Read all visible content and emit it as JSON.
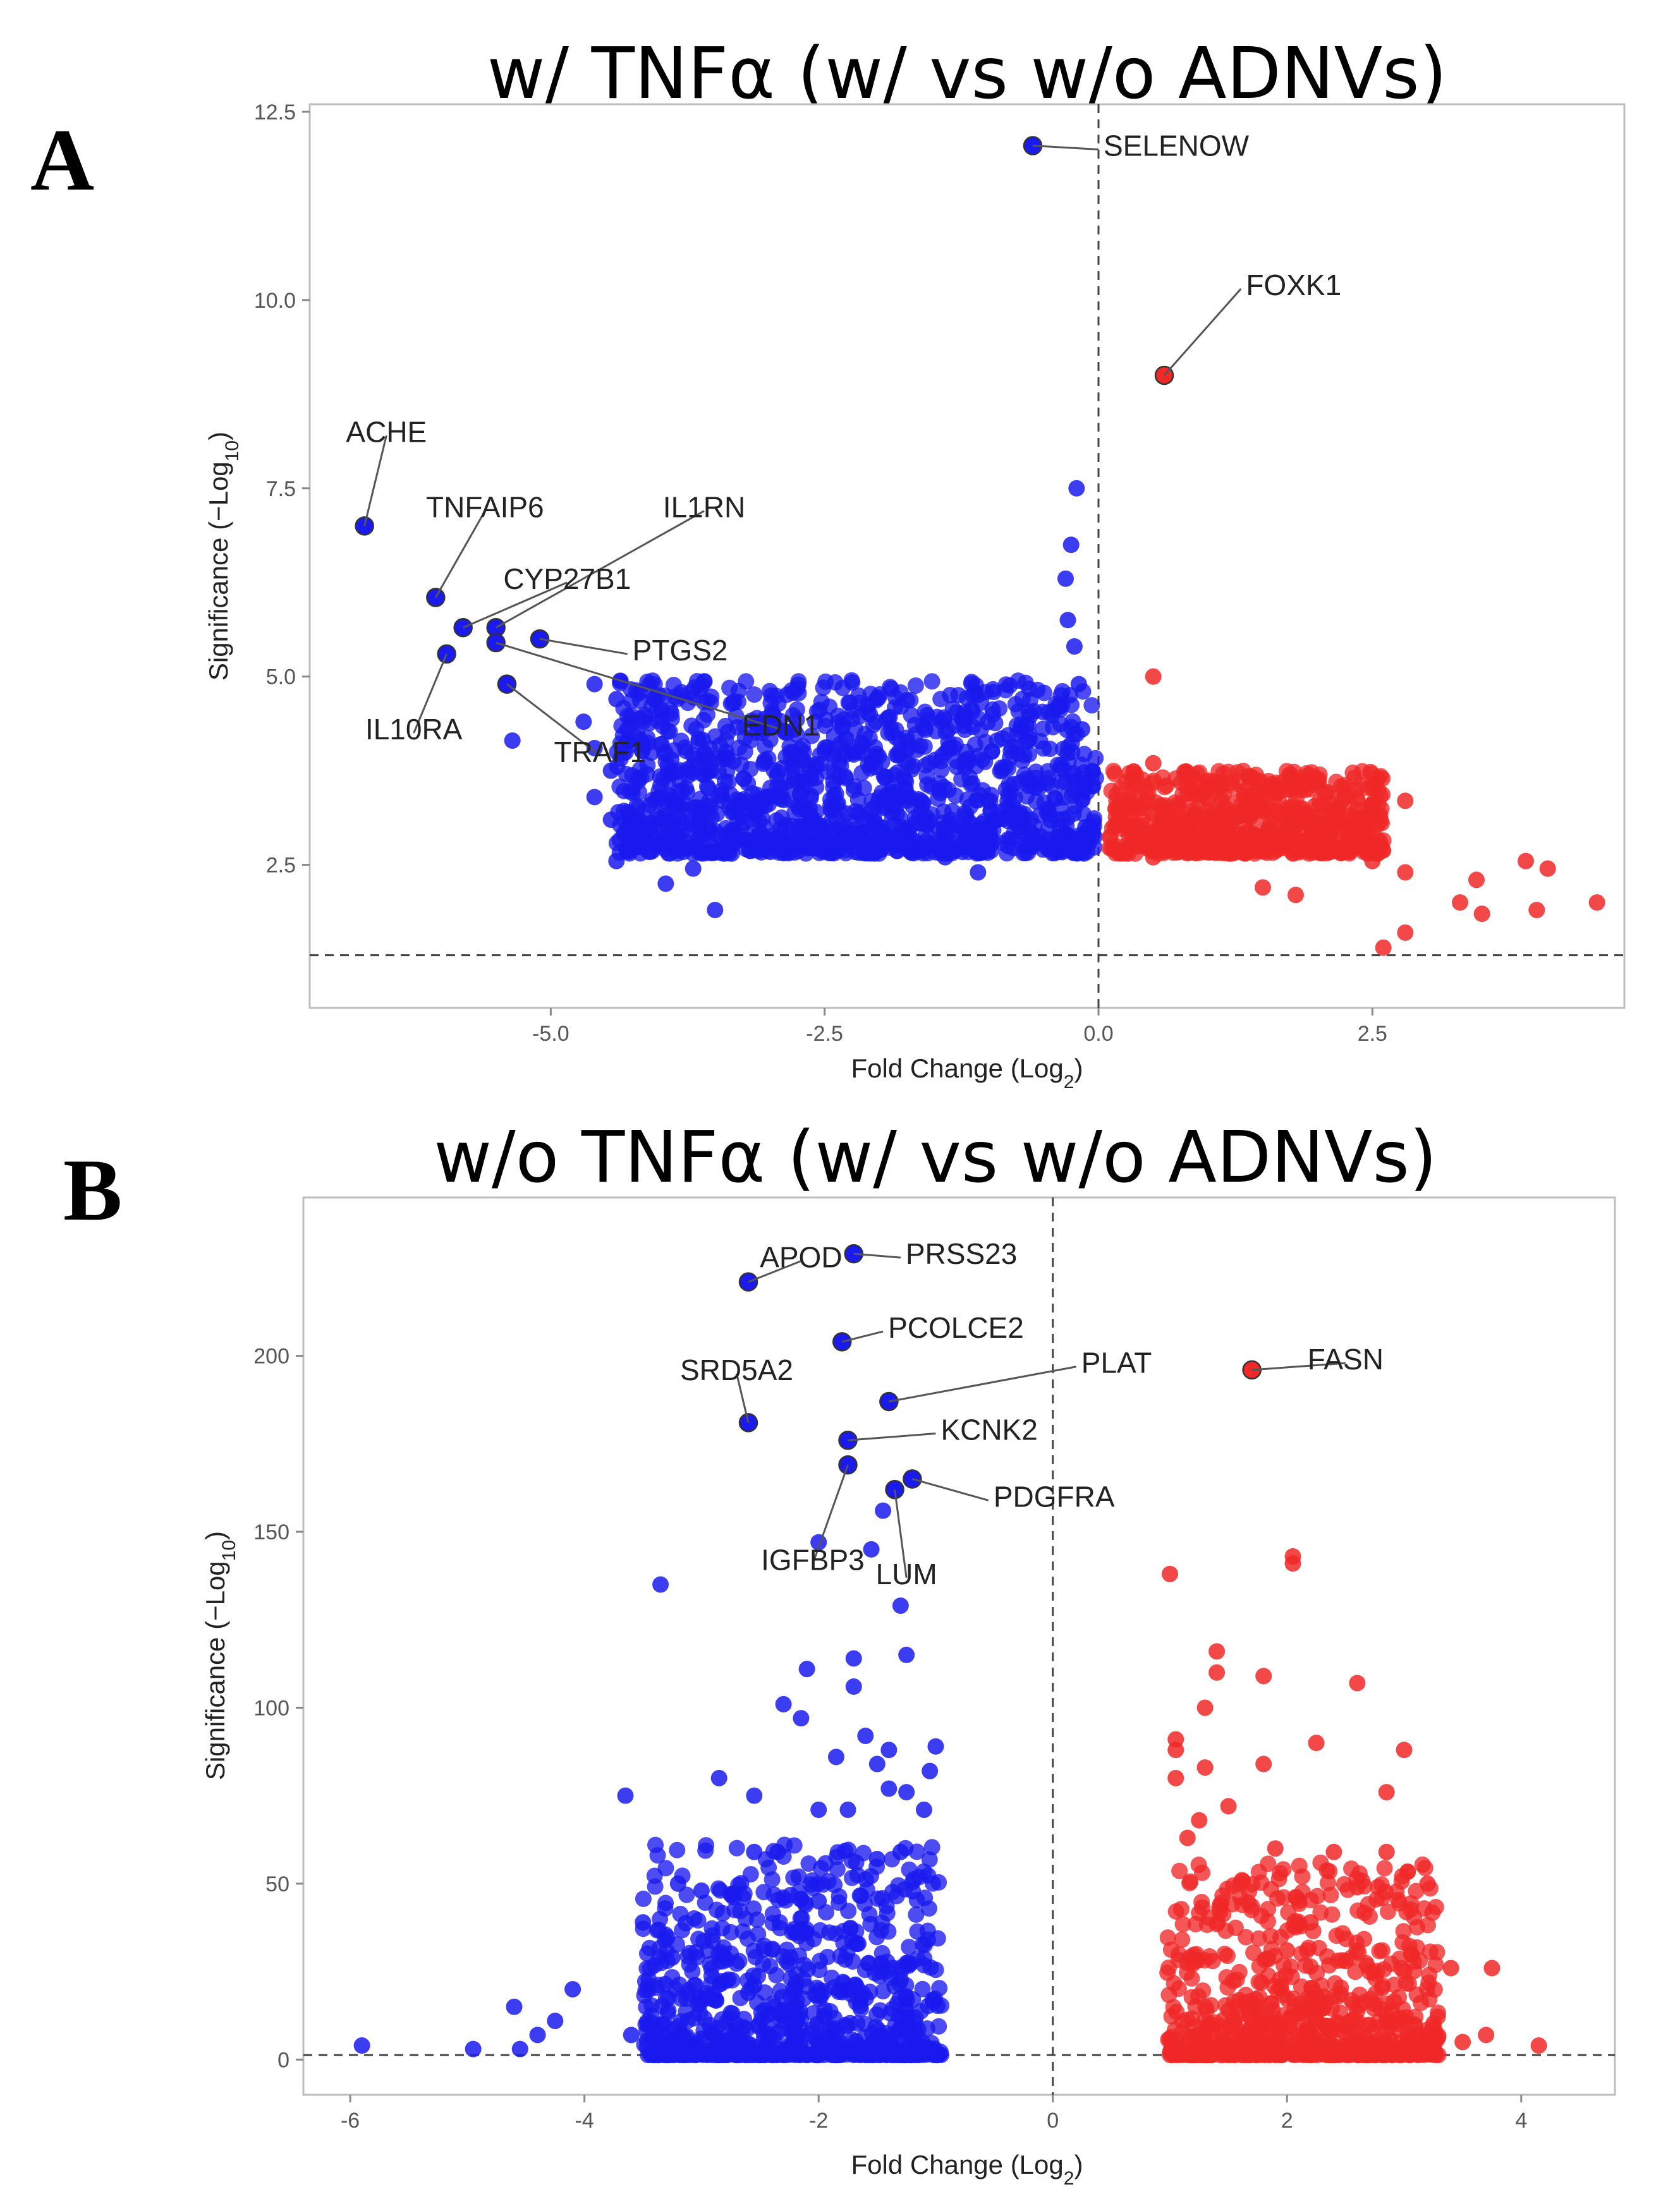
{
  "chart_data": [
    {
      "panel": "A",
      "type": "scatter",
      "title": "w/ TNFα (w/ vs w/o ADNVs)",
      "xlabel": "Fold Change (Log",
      "xlabel_sub": "2",
      "ylabel": "Significance (−Log",
      "ylabel_sub": "10",
      "xlim": [
        -7.2,
        4.8
      ],
      "ylim": [
        0.6,
        12.6
      ],
      "xticks": [
        -5.0,
        -2.5,
        0.0,
        2.5
      ],
      "xtick_labels": [
        "-5.0",
        "-2.5",
        "0.0",
        "2.5"
      ],
      "yticks": [
        2.5,
        5.0,
        7.5,
        10.0,
        12.5
      ],
      "ytick_labels": [
        "2.5",
        "5.0",
        "7.5",
        "10.0",
        "12.5"
      ],
      "vline_x": 0.0,
      "hline_y": 1.3,
      "colors": {
        "down": "#1a1aee",
        "up": "#f02828"
      },
      "down_points": [
        [
          -6.7,
          7.0
        ],
        [
          -6.05,
          6.05
        ],
        [
          -5.8,
          5.65
        ],
        [
          -5.95,
          5.3
        ],
        [
          -5.5,
          5.65
        ],
        [
          -5.5,
          5.45
        ],
        [
          -5.1,
          5.5
        ],
        [
          -5.4,
          4.9
        ],
        [
          -5.35,
          4.15
        ],
        [
          -4.7,
          4.4
        ],
        [
          -4.6,
          4.9
        ],
        [
          -4.4,
          4.7
        ],
        [
          -4.3,
          4.3
        ],
        [
          -4.6,
          4.05
        ],
        [
          -4.45,
          3.75
        ],
        [
          -4.2,
          3.65
        ],
        [
          -4.6,
          3.4
        ],
        [
          -4.45,
          3.1
        ],
        [
          -4.3,
          3.2
        ],
        [
          -4.0,
          3.4
        ],
        [
          -3.9,
          3.9
        ],
        [
          -3.6,
          3.7
        ],
        [
          -3.4,
          4.0
        ],
        [
          -3.1,
          3.3
        ],
        [
          -2.9,
          3.45
        ],
        [
          -2.7,
          3.5
        ],
        [
          -2.6,
          3.1
        ],
        [
          -4.4,
          2.55
        ],
        [
          -4.2,
          2.8
        ],
        [
          -3.95,
          2.25
        ],
        [
          -3.7,
          2.45
        ],
        [
          -3.5,
          1.9
        ],
        [
          -2.0,
          2.9
        ],
        [
          -1.7,
          2.7
        ],
        [
          -1.4,
          2.6
        ],
        [
          -1.1,
          2.4
        ],
        [
          -0.3,
          3.6
        ],
        [
          -0.35,
          4.6
        ],
        [
          -0.28,
          5.75
        ],
        [
          -0.22,
          5.4
        ],
        [
          -0.3,
          6.3
        ],
        [
          -0.25,
          6.75
        ],
        [
          -0.2,
          7.5
        ],
        [
          -0.18,
          4.9
        ],
        [
          -0.15,
          4.3
        ],
        [
          -0.12,
          3.0
        ],
        [
          -0.6,
          12.05
        ]
      ],
      "down_fill": {
        "n": 1300,
        "x_min": -4.4,
        "x_max": -0.02,
        "y_floor": 1.35,
        "y_amp": 2.3,
        "y_power": 1.6,
        "seed": 7
      },
      "up_points": [
        [
          0.6,
          9.0
        ],
        [
          0.5,
          5.0
        ],
        [
          0.5,
          3.85
        ],
        [
          0.4,
          3.1
        ],
        [
          0.25,
          3.6
        ],
        [
          0.3,
          2.9
        ],
        [
          0.5,
          2.6
        ],
        [
          1.0,
          2.8
        ],
        [
          1.5,
          2.75
        ],
        [
          2.0,
          2.9
        ],
        [
          2.25,
          2.7
        ],
        [
          2.5,
          2.55
        ],
        [
          2.8,
          3.35
        ],
        [
          2.8,
          2.4
        ],
        [
          3.3,
          2.0
        ],
        [
          3.45,
          2.3
        ],
        [
          3.9,
          2.55
        ],
        [
          4.1,
          2.45
        ],
        [
          4.55,
          2.0
        ],
        [
          4.0,
          1.9
        ],
        [
          3.5,
          1.85
        ],
        [
          2.8,
          1.6
        ],
        [
          2.6,
          1.4
        ],
        [
          1.5,
          2.2
        ],
        [
          1.8,
          2.1
        ]
      ],
      "up_fill": {
        "n": 700,
        "x_min": 0.1,
        "x_max": 2.6,
        "y_floor": 1.35,
        "y_amp": 1.1,
        "y_power": 1.6,
        "seed": 11
      },
      "labeled": [
        {
          "name": "SELENOW",
          "x": -0.6,
          "y": 12.05,
          "lx": 0.0,
          "ly": 12.05,
          "anchor": "start"
        },
        {
          "name": "FOXK1",
          "x": 0.6,
          "y": 9.0,
          "lx": 1.3,
          "ly": 10.2,
          "anchor": "start"
        },
        {
          "name": "ACHE",
          "x": -6.7,
          "y": 7.0,
          "lx": -6.5,
          "ly": 8.25,
          "anchor": "middle"
        },
        {
          "name": "TNFAIP6",
          "x": -6.05,
          "y": 6.05,
          "lx": -5.6,
          "ly": 7.25,
          "anchor": "middle"
        },
        {
          "name": "IL1RN",
          "x": -5.5,
          "y": 5.65,
          "lx": -3.6,
          "ly": 7.25,
          "anchor": "middle"
        },
        {
          "name": "CYP27B1",
          "x": -5.8,
          "y": 5.65,
          "lx": -4.85,
          "ly": 6.3,
          "anchor": "middle"
        },
        {
          "name": "PTGS2",
          "x": -5.1,
          "y": 5.5,
          "lx": -4.3,
          "ly": 5.35,
          "anchor": "start"
        },
        {
          "name": "IL10RA",
          "x": -5.95,
          "y": 5.3,
          "lx": -6.25,
          "ly": 4.3,
          "anchor": "middle"
        },
        {
          "name": "EDN1",
          "x": -5.5,
          "y": 5.45,
          "lx": -2.9,
          "ly": 4.35,
          "anchor": "middle"
        },
        {
          "name": "TRAF1",
          "x": -5.4,
          "y": 4.9,
          "lx": -4.55,
          "ly": 4.0,
          "anchor": "middle"
        }
      ]
    },
    {
      "panel": "B",
      "type": "scatter",
      "title": "w/o TNFα (w/ vs w/o ADNVs)",
      "xlabel": "Fold Change (Log",
      "xlabel_sub": "2",
      "ylabel": "Significance (−Log",
      "ylabel_sub": "10",
      "xlim": [
        -6.4,
        4.8
      ],
      "ylim": [
        -10,
        245
      ],
      "xticks": [
        -6,
        -4,
        -2,
        0,
        2,
        4
      ],
      "xtick_labels": [
        "-6",
        "-4",
        "-2",
        "0",
        "2",
        "4"
      ],
      "yticks": [
        0,
        50,
        100,
        150,
        200
      ],
      "ytick_labels": [
        "0",
        "50",
        "100",
        "150",
        "200"
      ],
      "vline_x": 0.0,
      "hline_y": 1.3,
      "colors": {
        "down": "#1a1aee",
        "up": "#f02828"
      },
      "down_points": [
        [
          -1.7,
          229
        ],
        [
          -2.6,
          221
        ],
        [
          -1.8,
          204
        ],
        [
          -1.4,
          187
        ],
        [
          -2.6,
          181
        ],
        [
          -1.75,
          176
        ],
        [
          -1.75,
          169
        ],
        [
          -1.2,
          165
        ],
        [
          -1.35,
          162
        ],
        [
          -1.45,
          156
        ],
        [
          -2.0,
          147
        ],
        [
          -1.55,
          145
        ],
        [
          -3.35,
          135
        ],
        [
          -1.3,
          129
        ],
        [
          -1.25,
          115
        ],
        [
          -1.7,
          114
        ],
        [
          -2.1,
          111
        ],
        [
          -1.7,
          106
        ],
        [
          -2.3,
          101
        ],
        [
          -2.15,
          97
        ],
        [
          -1.6,
          92
        ],
        [
          -1.4,
          88
        ],
        [
          -1.0,
          89
        ],
        [
          -1.85,
          86
        ],
        [
          -1.5,
          84
        ],
        [
          -1.05,
          82
        ],
        [
          -1.25,
          76
        ],
        [
          -1.4,
          77
        ],
        [
          -2.85,
          80
        ],
        [
          -3.65,
          75
        ],
        [
          -2.55,
          75
        ],
        [
          -2.0,
          71
        ],
        [
          -1.75,
          71
        ],
        [
          -1.1,
          71
        ],
        [
          -2.55,
          59
        ],
        [
          -2.35,
          59
        ],
        [
          -1.3,
          59
        ],
        [
          -1.5,
          57
        ],
        [
          -3.2,
          50
        ],
        [
          -3.0,
          48
        ],
        [
          -2.75,
          47
        ],
        [
          -2.3,
          46
        ],
        [
          -2.0,
          45
        ],
        [
          -3.5,
          39
        ],
        [
          -2.2,
          36
        ],
        [
          -3.25,
          29
        ],
        [
          -4.1,
          20
        ],
        [
          -4.25,
          11
        ],
        [
          -4.4,
          7
        ],
        [
          -4.6,
          15
        ],
        [
          -4.55,
          3
        ],
        [
          -4.95,
          3
        ],
        [
          -5.9,
          4
        ],
        [
          -3.6,
          7
        ],
        [
          -2.55,
          21
        ],
        [
          -2.6,
          19
        ]
      ],
      "down_fill": {
        "n": 900,
        "x_min": -3.5,
        "x_max": -0.95,
        "y_floor": 0,
        "y_amp": 60,
        "y_power": 3.2,
        "seed": 23
      },
      "up_points": [
        [
          1.7,
          196
        ],
        [
          2.05,
          143
        ],
        [
          2.05,
          141
        ],
        [
          1.0,
          138
        ],
        [
          1.4,
          116
        ],
        [
          1.4,
          110
        ],
        [
          1.8,
          109
        ],
        [
          2.6,
          107
        ],
        [
          1.3,
          100
        ],
        [
          1.05,
          91
        ],
        [
          1.05,
          88
        ],
        [
          2.25,
          90
        ],
        [
          3.0,
          88
        ],
        [
          1.8,
          84
        ],
        [
          1.3,
          83
        ],
        [
          1.05,
          80
        ],
        [
          2.85,
          76
        ],
        [
          1.5,
          72
        ],
        [
          1.25,
          68
        ],
        [
          1.15,
          63
        ],
        [
          1.9,
          60
        ],
        [
          2.4,
          59
        ],
        [
          2.85,
          59
        ],
        [
          1.6,
          50
        ],
        [
          2.6,
          49
        ],
        [
          3.2,
          50
        ],
        [
          2.2,
          39
        ],
        [
          2.0,
          31
        ],
        [
          2.5,
          28
        ],
        [
          3.0,
          25
        ],
        [
          3.4,
          26
        ],
        [
          3.75,
          26
        ],
        [
          2.1,
          13
        ],
        [
          3.7,
          7
        ],
        [
          4.15,
          4
        ],
        [
          3.5,
          5
        ]
      ],
      "up_fill": {
        "n": 800,
        "x_min": 0.97,
        "x_max": 3.3,
        "y_floor": 0,
        "y_amp": 55,
        "y_power": 3.2,
        "seed": 31
      },
      "labeled": [
        {
          "name": "APOD",
          "x": -2.6,
          "y": 221,
          "lx": -2.15,
          "ly": 228,
          "anchor": "middle"
        },
        {
          "name": "PRSS23",
          "x": -1.7,
          "y": 229,
          "lx": -1.3,
          "ly": 229,
          "anchor": "start"
        },
        {
          "name": "PCOLCE2",
          "x": -1.8,
          "y": 204,
          "lx": -1.45,
          "ly": 208,
          "anchor": "start"
        },
        {
          "name": "PLAT",
          "x": -1.4,
          "y": 187,
          "lx": 0.2,
          "ly": 198,
          "anchor": "start"
        },
        {
          "name": "SRD5A2",
          "x": -2.6,
          "y": 181,
          "lx": -2.7,
          "ly": 196,
          "anchor": "middle"
        },
        {
          "name": "KCNK2",
          "x": -1.75,
          "y": 176,
          "lx": -1.0,
          "ly": 179,
          "anchor": "start"
        },
        {
          "name": "PDGFRA",
          "x": -1.2,
          "y": 165,
          "lx": -0.55,
          "ly": 160,
          "anchor": "start"
        },
        {
          "name": "IGFBP3",
          "x": -1.75,
          "y": 169,
          "lx": -2.05,
          "ly": 142,
          "anchor": "middle"
        },
        {
          "name": "LUM",
          "x": -1.35,
          "y": 162,
          "lx": -1.25,
          "ly": 138,
          "anchor": "middle"
        },
        {
          "name": "FASN",
          "x": 1.7,
          "y": 196,
          "lx": 2.5,
          "ly": 199,
          "anchor": "middle"
        }
      ]
    }
  ]
}
